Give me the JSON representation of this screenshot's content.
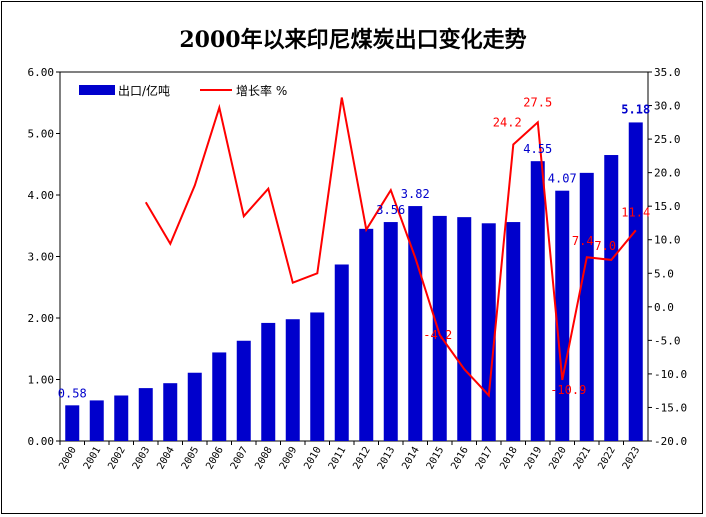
{
  "chart_data": {
    "type": "bar+line",
    "title": "2000年以来印尼煤炭出口变化走势",
    "categories": [
      "2000",
      "2001",
      "2002",
      "2003",
      "2004",
      "2005",
      "2006",
      "2007",
      "2008",
      "2009",
      "2010",
      "2011",
      "2012",
      "2013",
      "2014",
      "2015",
      "2016",
      "2017",
      "2018",
      "2019",
      "2020",
      "2021",
      "2022",
      "2023"
    ],
    "series": [
      {
        "name": "出口/亿吨",
        "type": "bar",
        "axis": "left",
        "color": "#0000cc",
        "values": [
          0.58,
          0.66,
          0.74,
          0.86,
          0.94,
          1.11,
          1.44,
          1.63,
          1.92,
          1.98,
          2.09,
          2.87,
          3.45,
          3.56,
          3.82,
          3.66,
          3.64,
          3.54,
          3.56,
          4.55,
          4.07,
          4.36,
          4.65,
          5.18
        ]
      },
      {
        "name": "增长率 %",
        "type": "line",
        "axis": "right",
        "color": "#ff0000",
        "values": [
          null,
          null,
          null,
          15.6,
          9.4,
          18.1,
          29.7,
          13.5,
          17.6,
          3.6,
          5.0,
          31.2,
          11.5,
          17.4,
          7.3,
          -4.2,
          -9.3,
          -13.2,
          24.2,
          27.5,
          -10.9,
          7.4,
          7.0,
          11.4
        ]
      }
    ],
    "bar_labels": [
      {
        "category": "2000",
        "text": "0.58"
      },
      {
        "category": "2013",
        "text": "3.56"
      },
      {
        "category": "2014",
        "text": "3.82"
      },
      {
        "category": "2019",
        "text": "4.55"
      },
      {
        "category": "2020",
        "text": "4.07"
      },
      {
        "category": "2023",
        "text": "5.18"
      }
    ],
    "line_labels": [
      {
        "category": "2015",
        "text": "-4.2"
      },
      {
        "category": "2018",
        "text": "24.2"
      },
      {
        "category": "2019",
        "text": "27.5"
      },
      {
        "category": "2020",
        "text": "-10.9"
      },
      {
        "category": "2021",
        "text": "7.4"
      },
      {
        "category": "2022",
        "text": "7.0"
      },
      {
        "category": "2023",
        "text": "11.4"
      }
    ],
    "ylim_left": [
      0,
      6
    ],
    "ylim_right": [
      -20,
      35
    ],
    "yticks_left": [
      "0.00",
      "1.00",
      "2.00",
      "3.00",
      "4.00",
      "5.00",
      "6.00"
    ],
    "yticks_right": [
      "-20.0",
      "-15.0",
      "-10.0",
      "-5.0",
      "0.0",
      "5.0",
      "10.0",
      "15.0",
      "20.0",
      "25.0",
      "30.0",
      "35.0"
    ],
    "grid": false,
    "legend_position": "top-left"
  }
}
